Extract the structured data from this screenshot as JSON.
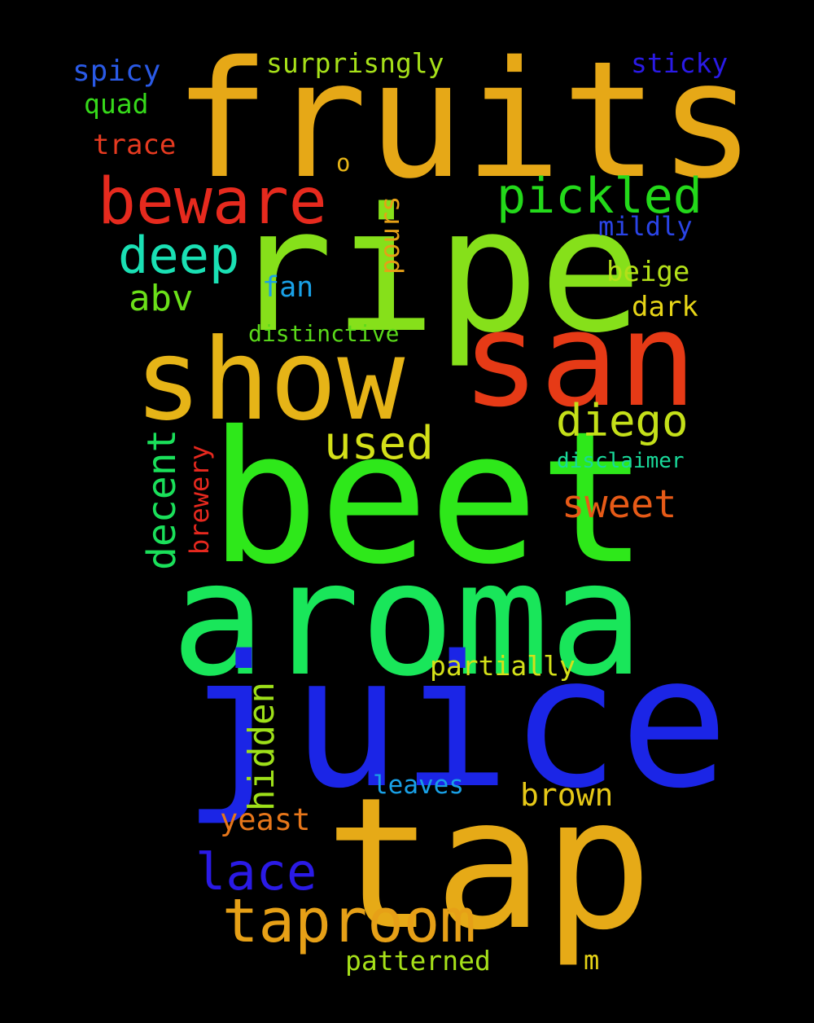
{
  "words": [
    {
      "id": "fruits",
      "text": "fruits",
      "color": "#e6a817"
    },
    {
      "id": "ripe",
      "text": "ripe",
      "color": "#86e01a"
    },
    {
      "id": "beet",
      "text": "beet",
      "color": "#2ee81a"
    },
    {
      "id": "aroma",
      "text": "aroma",
      "color": "#19e65a"
    },
    {
      "id": "juice",
      "text": "juice",
      "color": "#1b25e6"
    },
    {
      "id": "tap",
      "text": "tap",
      "color": "#e6aa17"
    },
    {
      "id": "san",
      "text": "san",
      "color": "#e63a16"
    },
    {
      "id": "show",
      "text": "show",
      "color": "#e6b417"
    },
    {
      "id": "beware",
      "text": "beware",
      "color": "#e62a1e"
    },
    {
      "id": "taproom",
      "text": "taproom",
      "color": "#e6a017"
    },
    {
      "id": "pickled",
      "text": "pickled",
      "color": "#23d91a"
    },
    {
      "id": "deep",
      "text": "deep",
      "color": "#1ae0b4"
    },
    {
      "id": "diego",
      "text": "diego",
      "color": "#c4e019"
    },
    {
      "id": "used",
      "text": "used",
      "color": "#d4e019"
    },
    {
      "id": "sweet",
      "text": "sweet",
      "color": "#e65a17"
    },
    {
      "id": "lace",
      "text": "lace",
      "color": "#2a1ae6"
    },
    {
      "id": "abv",
      "text": "abv",
      "color": "#6be019"
    },
    {
      "id": "decent",
      "text": "decent",
      "color": "#1ae05a"
    },
    {
      "id": "hidden",
      "text": "hidden",
      "color": "#9ee019"
    },
    {
      "id": "brown",
      "text": "brown",
      "color": "#e6c817"
    },
    {
      "id": "yeast",
      "text": "yeast",
      "color": "#e6761a"
    },
    {
      "id": "spicy",
      "text": "spicy",
      "color": "#2a5ae6"
    },
    {
      "id": "surprisngly",
      "text": "surprisngly",
      "color": "#a6e019"
    },
    {
      "id": "sticky",
      "text": "sticky",
      "color": "#2a1ae6"
    },
    {
      "id": "quad",
      "text": "quad",
      "color": "#36d91a"
    },
    {
      "id": "trace",
      "text": "trace",
      "color": "#e63a20"
    },
    {
      "id": "o",
      "text": "o",
      "color": "#e6b417"
    },
    {
      "id": "pours",
      "text": "pours",
      "color": "#e6a017"
    },
    {
      "id": "mildly",
      "text": "mildly",
      "color": "#2a44e6"
    },
    {
      "id": "beige",
      "text": "beige",
      "color": "#b4e019"
    },
    {
      "id": "dark",
      "text": "dark",
      "color": "#e6d417"
    },
    {
      "id": "fan",
      "text": "fan",
      "color": "#19a0e6"
    },
    {
      "id": "distinctive",
      "text": "distinctive",
      "color": "#5ad91a"
    },
    {
      "id": "brewery",
      "text": "brewery",
      "color": "#e6281e"
    },
    {
      "id": "disclaimer",
      "text": "disclaimer",
      "color": "#19d99a"
    },
    {
      "id": "partially",
      "text": "partially",
      "color": "#d4e019"
    },
    {
      "id": "leaves",
      "text": "leaves",
      "color": "#19a0e6"
    },
    {
      "id": "patterned",
      "text": "patterned",
      "color": "#a6e019"
    },
    {
      "id": "m",
      "text": "m",
      "color": "#e6d417"
    }
  ]
}
